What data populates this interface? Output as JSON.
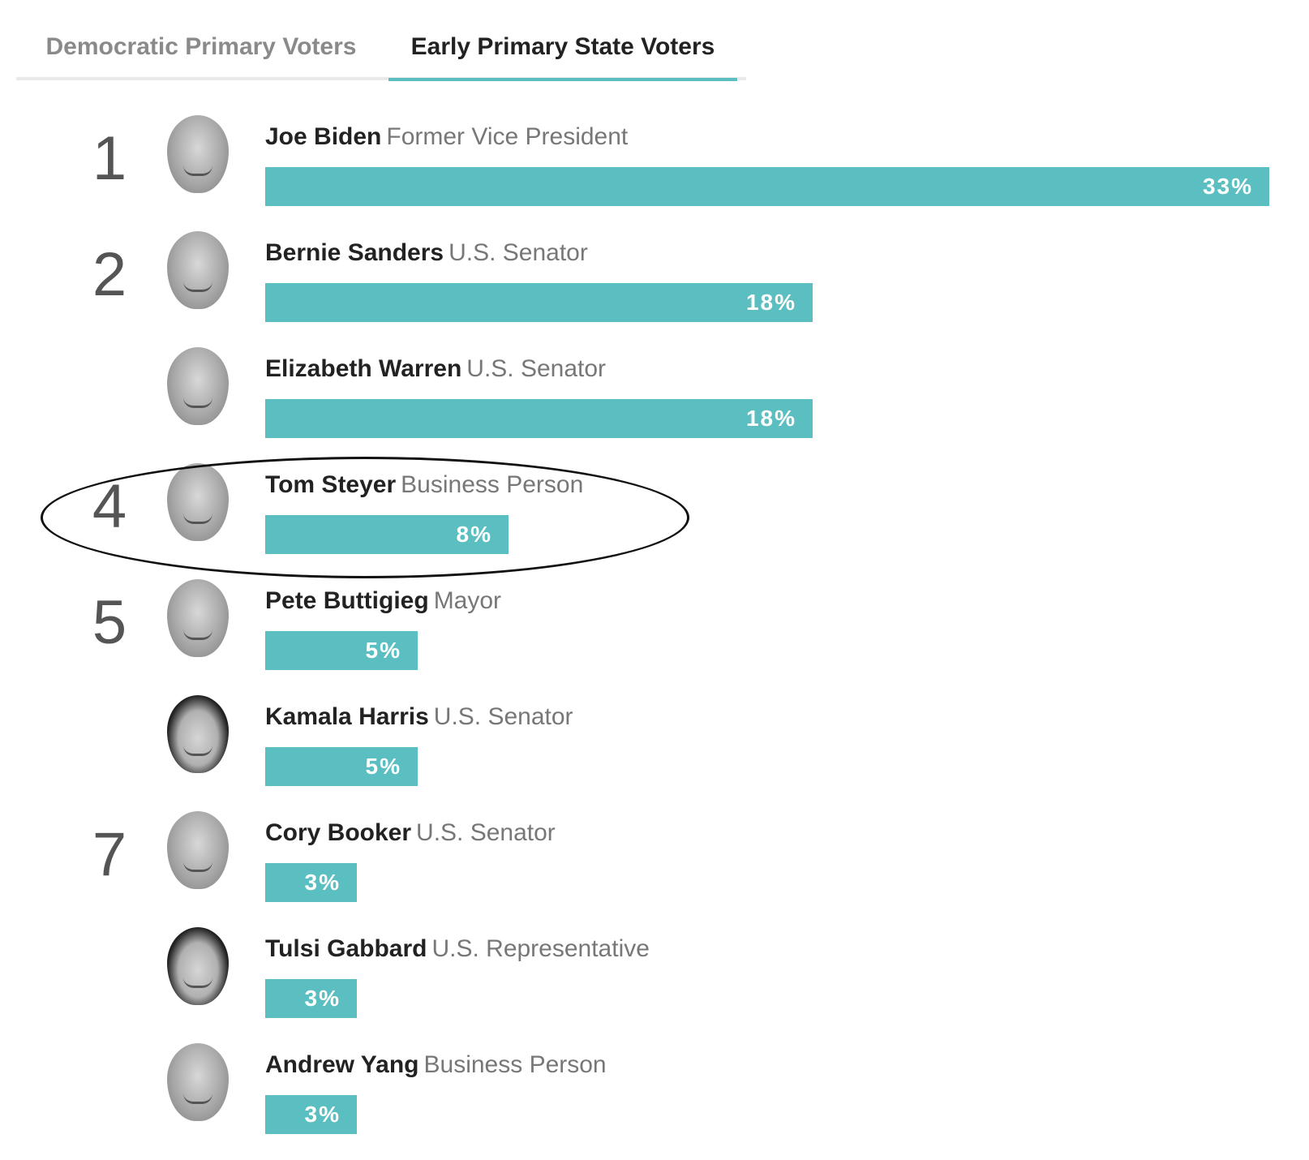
{
  "tabs": [
    {
      "label": "Democratic Primary Voters",
      "active": false
    },
    {
      "label": "Early Primary State Voters",
      "active": true
    }
  ],
  "accent_color": "#5bbfc2",
  "chart_data": {
    "type": "bar",
    "orientation": "horizontal",
    "xlim": [
      0,
      33
    ],
    "categories": [
      "Joe Biden",
      "Bernie Sanders",
      "Elizabeth Warren",
      "Tom Steyer",
      "Pete Buttigieg",
      "Kamala Harris",
      "Cory Booker",
      "Tulsi Gabbard",
      "Andrew Yang"
    ],
    "values": [
      33,
      18,
      18,
      8,
      5,
      5,
      3,
      3,
      3
    ],
    "rows": [
      {
        "rank": "1",
        "name": "Joe Biden",
        "title": "Former Vice President",
        "value": 33,
        "label": "33%",
        "avatar": "joe-biden-photo"
      },
      {
        "rank": "2",
        "name": "Bernie Sanders",
        "title": "U.S. Senator",
        "value": 18,
        "label": "18%",
        "avatar": "bernie-sanders-photo"
      },
      {
        "rank": "",
        "name": "Elizabeth Warren",
        "title": "U.S. Senator",
        "value": 18,
        "label": "18%",
        "avatar": "elizabeth-warren-photo"
      },
      {
        "rank": "4",
        "name": "Tom Steyer",
        "title": "Business Person",
        "value": 8,
        "label": "8%",
        "avatar": "tom-steyer-photo",
        "highlighted": true
      },
      {
        "rank": "5",
        "name": "Pete Buttigieg",
        "title": "Mayor",
        "value": 5,
        "label": "5%",
        "avatar": "pete-buttigieg-photo"
      },
      {
        "rank": "",
        "name": "Kamala Harris",
        "title": "U.S. Senator",
        "value": 5,
        "label": "5%",
        "avatar": "kamala-harris-photo",
        "dark_hair": true
      },
      {
        "rank": "7",
        "name": "Cory Booker",
        "title": "U.S. Senator",
        "value": 3,
        "label": "3%",
        "avatar": "cory-booker-photo"
      },
      {
        "rank": "",
        "name": "Tulsi Gabbard",
        "title": "U.S. Representative",
        "value": 3,
        "label": "3%",
        "avatar": "tulsi-gabbard-photo",
        "dark_hair": true
      },
      {
        "rank": "",
        "name": "Andrew Yang",
        "title": "Business Person",
        "value": 3,
        "label": "3%",
        "avatar": "andrew-yang-photo"
      }
    ]
  }
}
